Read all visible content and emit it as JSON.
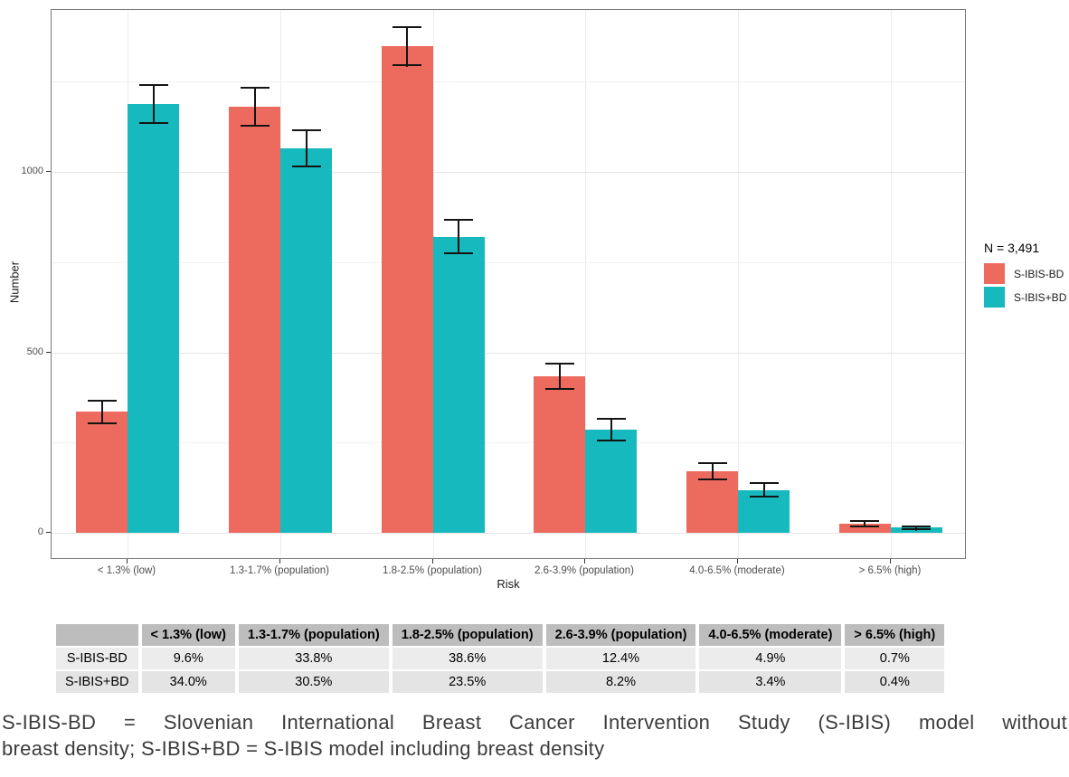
{
  "chart_data": {
    "type": "bar",
    "title": "",
    "xlabel": "Risk",
    "ylabel": "Number",
    "categories": [
      "< 1.3% (low)",
      "1.3-1.7% (population)",
      "1.8-2.5% (population)",
      "2.6-3.9% (population)",
      "4.0-6.5% (moderate)",
      "> 6.5% (high)"
    ],
    "series": [
      {
        "name": "S-IBIS-BD",
        "color": "#ed6a5e",
        "values": [
          335,
          1180,
          1348,
          433,
          171,
          24
        ],
        "errors": [
          34,
          55,
          56,
          38,
          25,
          10
        ]
      },
      {
        "name": "S-IBIS+BD",
        "color": "#16b9bd",
        "values": [
          1187,
          1065,
          820,
          286,
          119,
          14
        ],
        "errors": [
          55,
          53,
          49,
          32,
          21,
          7
        ]
      }
    ],
    "yticks": [
      0,
      500,
      1000
    ],
    "minor_gridlines": [
      250,
      750,
      1250
    ],
    "ylim": [
      -75,
      1450
    ],
    "grid": true,
    "legend_position": "right",
    "legend_title": "N = 3,491",
    "error_bars": true
  },
  "table": {
    "corner_label": "",
    "columns": [
      "< 1.3% (low)",
      "1.3-1.7% (population)",
      "1.8-2.5% (population)",
      "2.6-3.9% (population)",
      "4.0-6.5% (moderate)",
      "> 6.5% (high)"
    ],
    "rows": [
      {
        "label": "S-IBIS-BD",
        "values": [
          "9.6%",
          "33.8%",
          "38.6%",
          "12.4%",
          "4.9%",
          "0.7%"
        ]
      },
      {
        "label": "S-IBIS+BD",
        "values": [
          "34.0%",
          "30.5%",
          "23.5%",
          "8.2%",
          "3.4%",
          "0.4%"
        ]
      }
    ]
  },
  "caption": {
    "line1": "S-IBIS-BD = Slovenian International Breast Cancer Intervention Study (S-IBIS) model without",
    "line2": "breast density; S-IBIS+BD = S-IBIS model including breast density"
  }
}
